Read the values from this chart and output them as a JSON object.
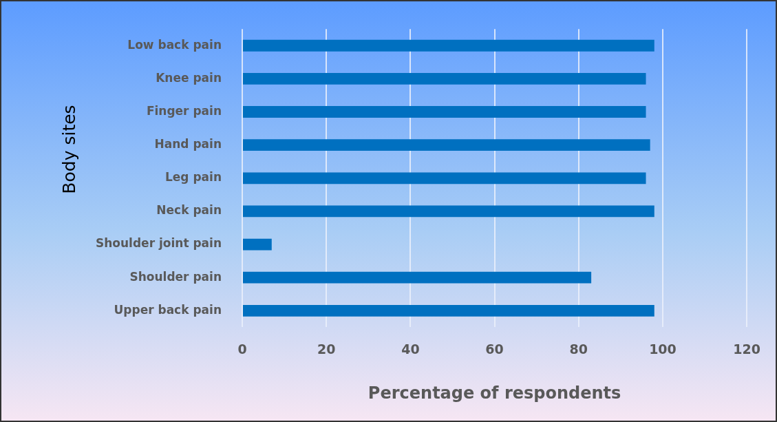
{
  "chart_data": {
    "type": "bar",
    "orientation": "horizontal",
    "xlabel": "Percentage of respondents",
    "ylabel": "Body sites",
    "categories": [
      "Low back pain",
      "Knee pain",
      "Finger pain",
      "Hand pain",
      "Leg pain",
      "Neck pain",
      "Shoulder joint pain",
      "Shoulder pain",
      "Upper back pain"
    ],
    "values": [
      98,
      96,
      96,
      97,
      96,
      98,
      7,
      83,
      98
    ],
    "color": "#0070c0",
    "xlim": [
      0,
      120
    ],
    "xticks": [
      0,
      20,
      40,
      60,
      80,
      100,
      120
    ],
    "grid": "x",
    "legend": false
  }
}
